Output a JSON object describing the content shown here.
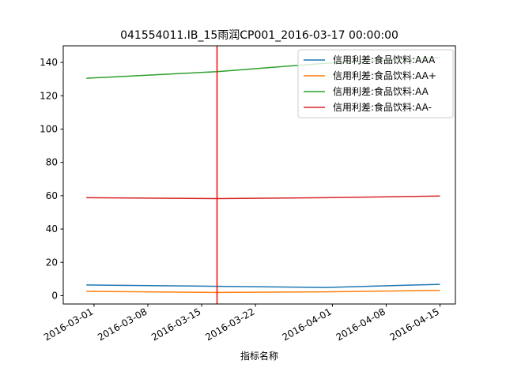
{
  "chart_data": {
    "type": "line",
    "title": "041554011.IB_15雨润CP001_2016-03-17 00:00:00",
    "xlabel": "指标名称",
    "ylabel": "",
    "ylim": [
      -5,
      150
    ],
    "yticks": [
      0,
      20,
      40,
      60,
      80,
      100,
      120,
      140
    ],
    "xlim": [
      "2016-02-26",
      "2016-04-17"
    ],
    "xticks": [
      "2016-03-01",
      "2016-03-08",
      "2016-03-15",
      "2016-03-22",
      "2016-04-01",
      "2016-04-08",
      "2016-04-15"
    ],
    "x": [
      "2016-02-29",
      "2016-03-17",
      "2016-03-31",
      "2016-04-15"
    ],
    "series": [
      {
        "name": "信用利差:食品饮料:AAA",
        "color": "#1f77b4",
        "values": [
          6.4,
          5.6,
          4.9,
          6.8
        ]
      },
      {
        "name": "信用利差:食品饮料:AA+",
        "color": "#ff7f0e",
        "values": [
          2.6,
          1.9,
          2.3,
          3.2
        ]
      },
      {
        "name": "信用利差:食品饮料:AA",
        "color": "#2ca02c",
        "values": [
          130.5,
          134.5,
          139.5,
          143.0
        ]
      },
      {
        "name": "信用利差:食品饮料:AA-",
        "color": "#d62728",
        "values": [
          58.8,
          58.3,
          58.8,
          59.8
        ]
      }
    ],
    "vline": {
      "x": "2016-03-17",
      "color": "#ff0000"
    },
    "grid": false,
    "legend": "top-right"
  }
}
